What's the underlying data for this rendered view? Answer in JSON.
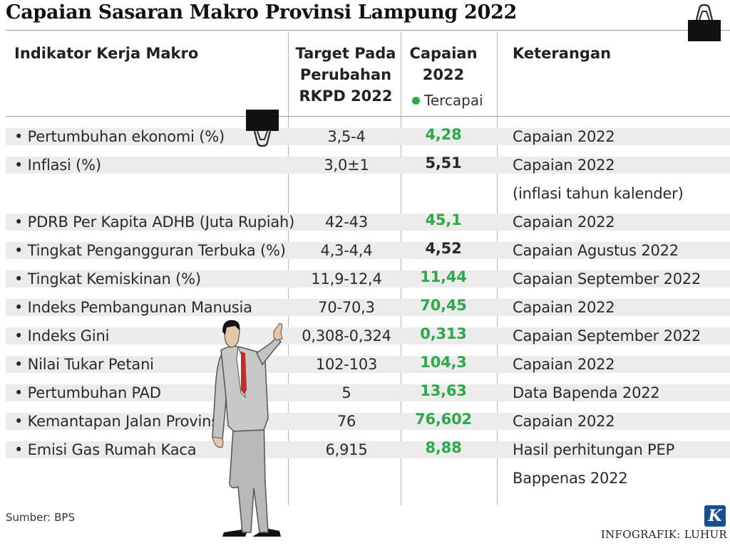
{
  "title": "Capaian Sasaran Makro Provinsi Lampung 2022",
  "columns": {
    "indikator": "Indikator Kerja Makro",
    "target": [
      "Target Pada",
      "Perubahan",
      "RKPD 2022"
    ],
    "capaian": [
      "Capaian",
      "2022"
    ],
    "keterangan": "Keterangan"
  },
  "legend": {
    "label": "Tercapai",
    "color": "#2fa84a"
  },
  "rows": [
    {
      "indikator": "• Pertumbuhan ekonomi (%)",
      "target": "3,5-4",
      "capaian": "4,28",
      "tercapai": true,
      "keterangan": [
        "Capaian 2022"
      ]
    },
    {
      "indikator": "• Inflasi (%)",
      "target": "3,0±1",
      "capaian": "5,51",
      "tercapai": false,
      "keterangan": [
        "Capaian 2022",
        "(inflasi tahun kalender)"
      ]
    },
    {
      "indikator": "• PDRB Per Kapita ADHB (Juta Rupiah)",
      "target": "42-43",
      "capaian": "45,1",
      "tercapai": true,
      "keterangan": [
        "Capaian 2022"
      ]
    },
    {
      "indikator": "• Tingkat Pengangguran Terbuka (%)",
      "target": "4,3-4,4",
      "capaian": "4,52",
      "tercapai": false,
      "keterangan": [
        "Capaian Agustus 2022"
      ]
    },
    {
      "indikator": "• Tingkat Kemiskinan (%)",
      "target": "11,9-12,4",
      "capaian": "11,44",
      "tercapai": true,
      "keterangan": [
        "Capaian September 2022"
      ]
    },
    {
      "indikator": "• Indeks Pembangunan Manusia",
      "target": "70-70,3",
      "capaian": "70,45",
      "tercapai": true,
      "keterangan": [
        "Capaian 2022"
      ]
    },
    {
      "indikator": "• Indeks Gini",
      "target": "0,308-0,324",
      "capaian": "0,313",
      "tercapai": true,
      "keterangan": [
        "Capaian September 2022"
      ]
    },
    {
      "indikator": "• Nilai Tukar Petani",
      "target": "102-103",
      "capaian": "104,3",
      "tercapai": true,
      "keterangan": [
        "Capaian 2022"
      ]
    },
    {
      "indikator": "• Pertumbuhan PAD",
      "target": "5",
      "capaian": "13,63",
      "tercapai": true,
      "keterangan": [
        "Data Bapenda 2022"
      ]
    },
    {
      "indikator": "• Kemantapan Jalan Provinsi (%)",
      "target": "76",
      "capaian": "76,602",
      "tercapai": true,
      "keterangan": [
        "Capaian 2022"
      ]
    },
    {
      "indikator": "• Emisi Gas Rumah Kaca",
      "target": "6,915",
      "capaian": "8,88",
      "tercapai": true,
      "keterangan": [
        "Hasil perhitungan PEP",
        "Bappenas 2022"
      ]
    }
  ],
  "source": "Sumber: BPS",
  "credit": "INFOGRAFIK: LUHUR",
  "logo": "K"
}
